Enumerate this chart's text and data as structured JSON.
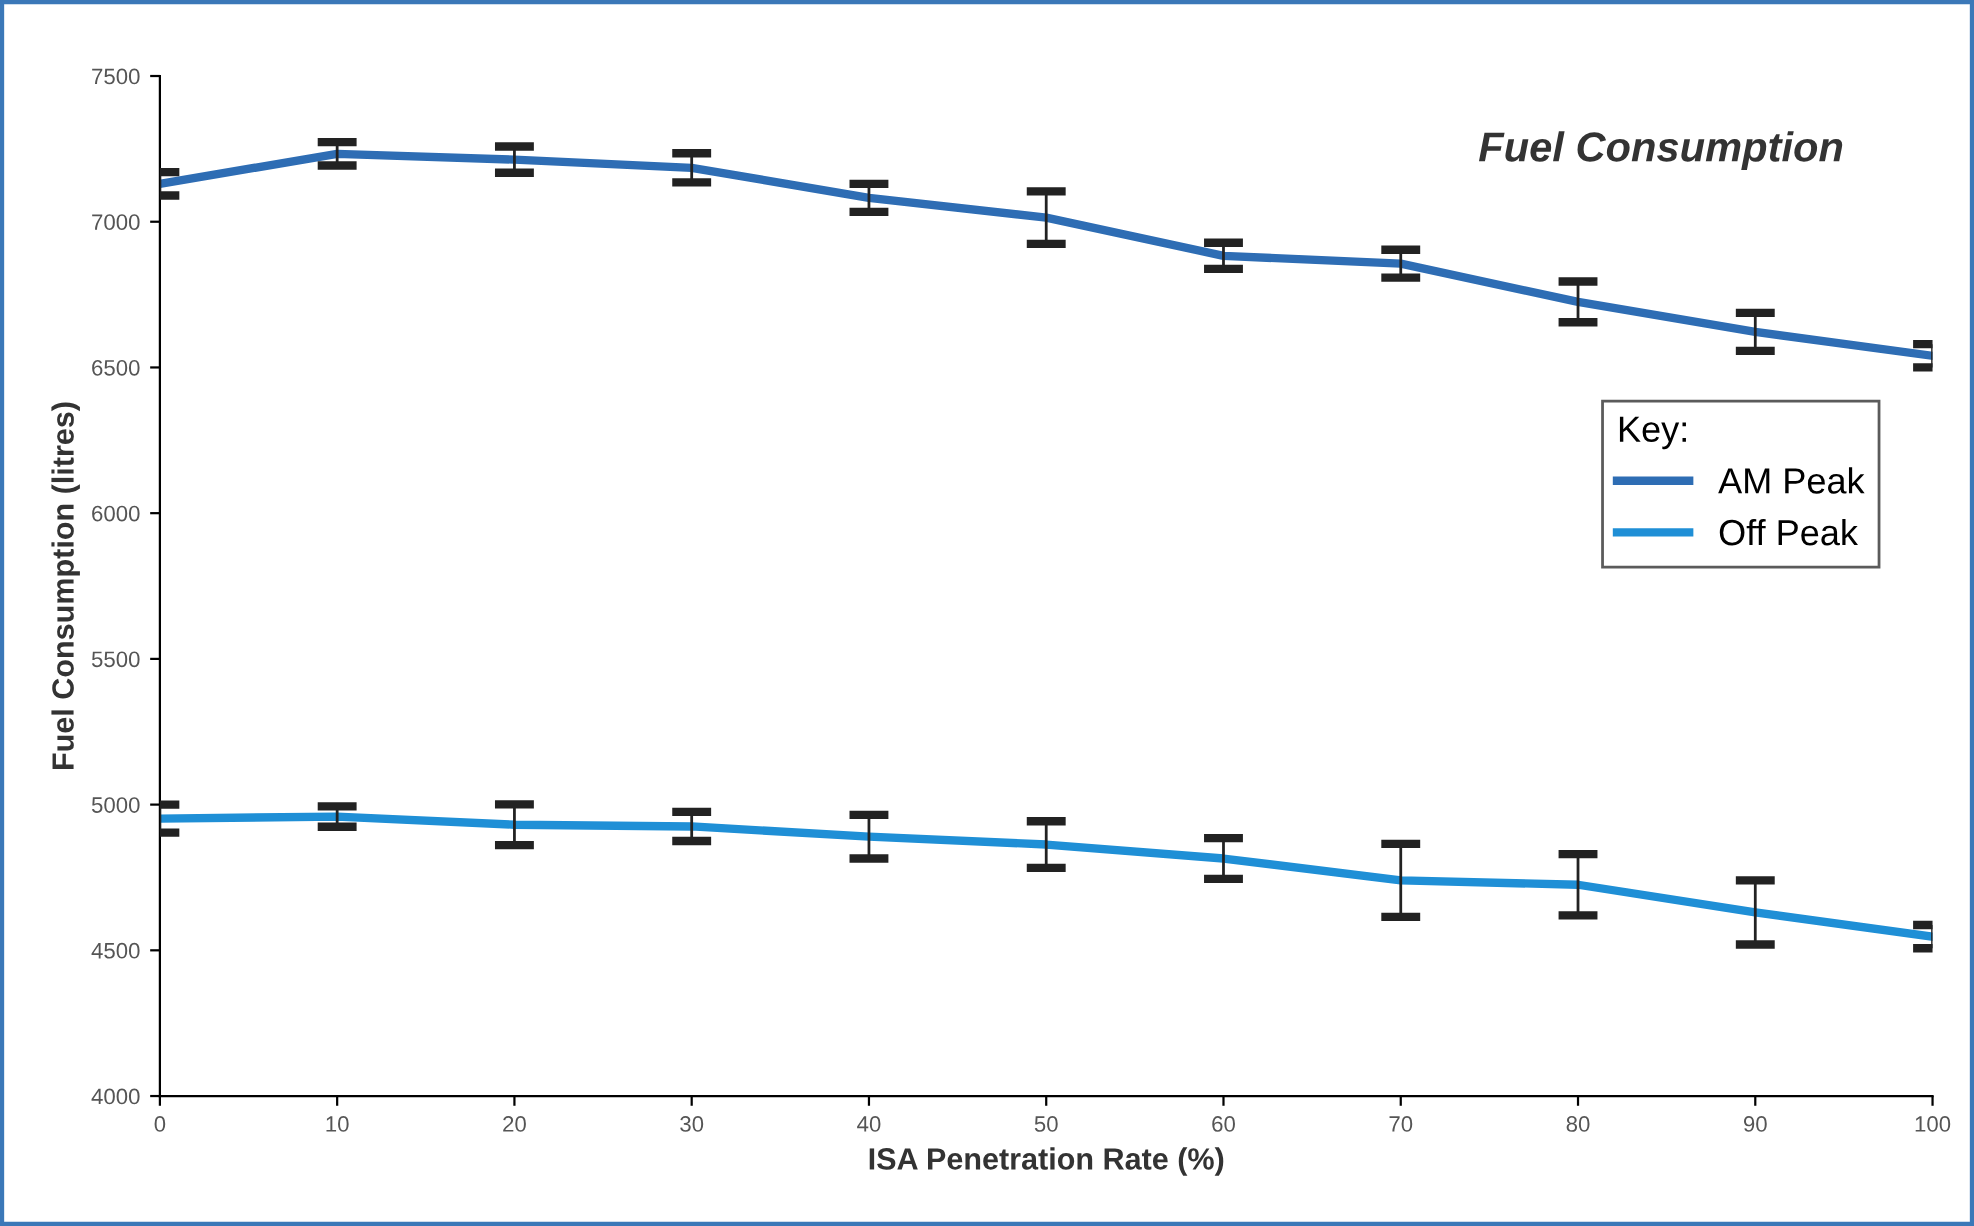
{
  "chart_data": {
    "type": "line",
    "title": "Fuel Consumption",
    "xlabel": "ISA Penetration Rate (%)",
    "ylabel": "Fuel Consumption (litres)",
    "legend_title": "Key:",
    "x": [
      0,
      10,
      20,
      30,
      40,
      50,
      60,
      70,
      80,
      90,
      100
    ],
    "series": [
      {
        "name": "AM Peak",
        "color": "#2e6db4",
        "values": [
          7130,
          7233,
          7213,
          7185,
          7082,
          7014,
          6883,
          6856,
          6725,
          6622,
          6540
        ],
        "errors": [
          40,
          40,
          45,
          50,
          48,
          90,
          45,
          48,
          70,
          65,
          40
        ]
      },
      {
        "name": "Off Peak",
        "color": "#1f8fd6",
        "values": [
          4952,
          4959,
          4931,
          4925,
          4890,
          4863,
          4815,
          4740,
          4725,
          4630,
          4547
        ],
        "errors": [
          48,
          35,
          70,
          50,
          75,
          80,
          70,
          125,
          105,
          110,
          40
        ]
      }
    ],
    "xlim": [
      0,
      100
    ],
    "xticks": [
      0,
      10,
      20,
      30,
      40,
      50,
      60,
      70,
      80,
      90,
      100
    ],
    "ylim": [
      4000,
      7500
    ],
    "yticks": [
      4000,
      4500,
      5000,
      5500,
      6000,
      6500,
      7000,
      7500
    ],
    "grid": false,
    "legend": "right",
    "marker": "none",
    "line_style": "solid"
  }
}
